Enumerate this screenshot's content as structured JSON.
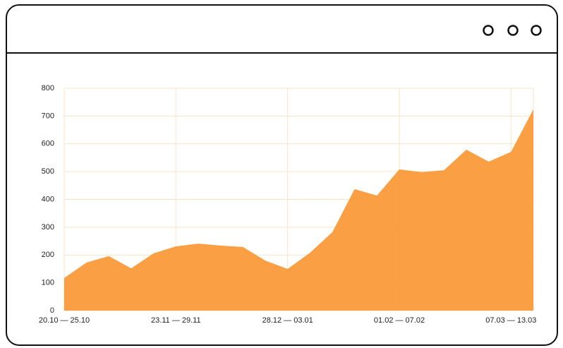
{
  "chart_data": {
    "type": "area",
    "categories": [
      "20.10 — 25.10",
      null,
      null,
      null,
      null,
      "23.11 — 29.11",
      null,
      null,
      null,
      null,
      "28.12 — 03.01",
      null,
      null,
      null,
      null,
      "01.02 — 07.02",
      null,
      null,
      null,
      null,
      "07.03 — 13.03",
      null
    ],
    "values": [
      117,
      173,
      196,
      152,
      206,
      231,
      241,
      234,
      229,
      180,
      150,
      208,
      282,
      437,
      414,
      508,
      498,
      505,
      579,
      536,
      571,
      724
    ],
    "color": "#fb9a3a",
    "ylim": [
      0,
      800
    ],
    "yticks": [
      0,
      100,
      200,
      300,
      400,
      500,
      600,
      700,
      800
    ],
    "grid": true
  }
}
